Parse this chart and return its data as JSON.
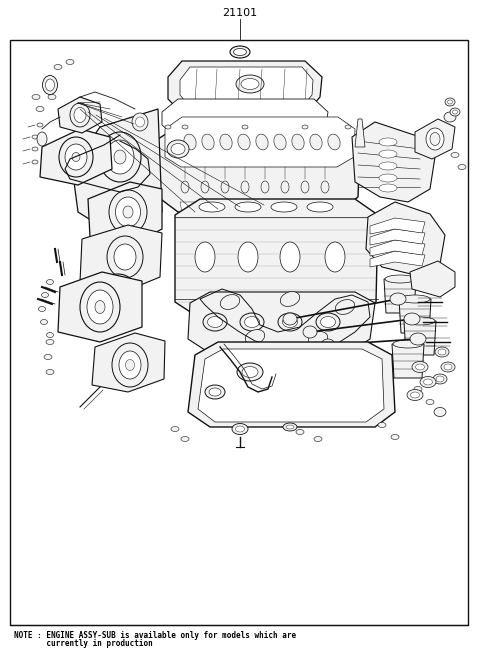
{
  "title": "21101",
  "note_line1": "NOTE : ENGINE ASSY-SUB is available only for models which are",
  "note_line2": "       currently in production",
  "bg_color": "#ffffff",
  "border_color": "#000000",
  "text_color": "#000000",
  "fig_width": 4.8,
  "fig_height": 6.57,
  "dpi": 100,
  "lc": "#111111",
  "lw_main": 0.8,
  "lw_thin": 0.4,
  "lw_med": 0.6
}
